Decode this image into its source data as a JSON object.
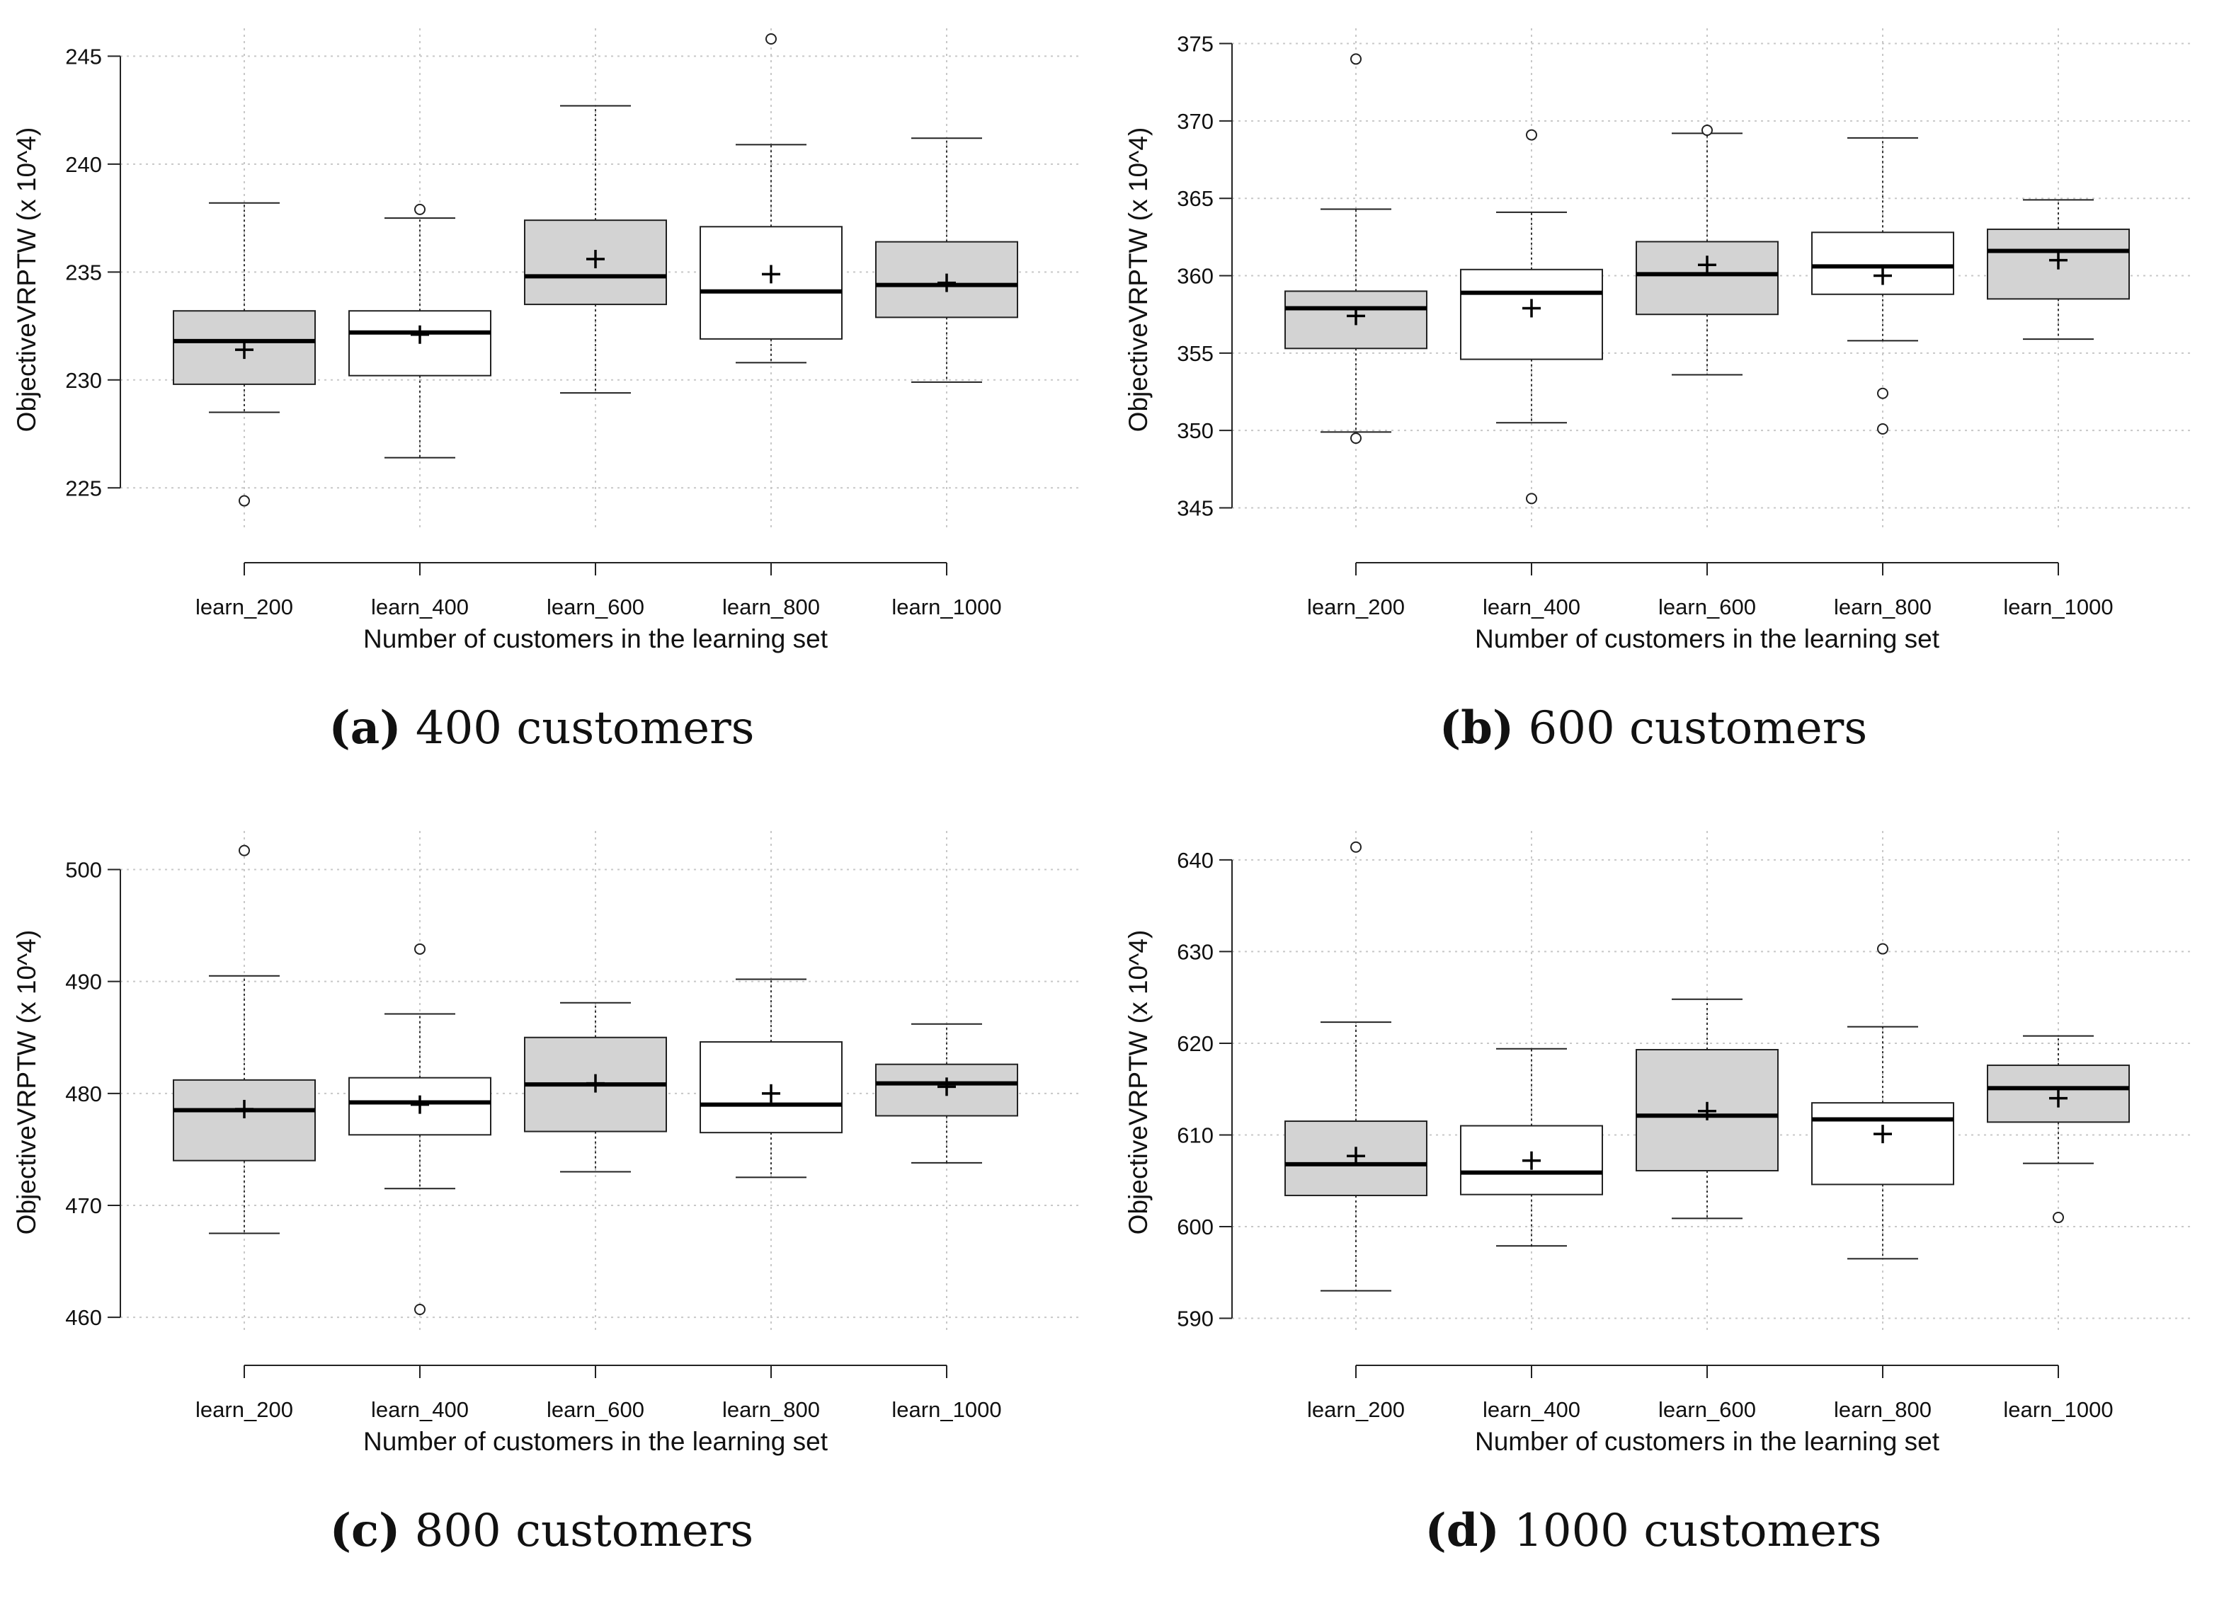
{
  "figure": {
    "chart_data": [
      {
        "type": "boxplot",
        "caption_label": "(a)",
        "caption_text": " 400 customers",
        "xlabel": "Number of customers in the learning set",
        "ylabel": "ObjectiveVRPTW (x 10^4)",
        "ylim": [
          223.5,
          245.8
        ],
        "yticks": [
          225,
          230,
          235,
          240,
          245
        ],
        "categories": [
          "learn_200",
          "learn_400",
          "learn_600",
          "learn_800",
          "learn_1000"
        ],
        "boxes": [
          {
            "whisker_low": 228.5,
            "q1": 229.8,
            "median": 231.8,
            "q3": 233.2,
            "whisker_high": 238.2,
            "mean": 231.4,
            "outliers": [
              224.4
            ],
            "fill": "#d3d3d3"
          },
          {
            "whisker_low": 226.4,
            "q1": 230.2,
            "median": 232.2,
            "q3": 233.2,
            "whisker_high": 237.5,
            "mean": 232.1,
            "outliers": [
              237.9
            ],
            "fill": "#ffffff"
          },
          {
            "whisker_low": 229.4,
            "q1": 233.5,
            "median": 234.8,
            "q3": 237.4,
            "whisker_high": 242.7,
            "mean": 235.6,
            "outliers": [],
            "fill": "#d3d3d3"
          },
          {
            "whisker_low": 230.8,
            "q1": 231.9,
            "median": 234.1,
            "q3": 237.1,
            "whisker_high": 240.9,
            "mean": 234.9,
            "outliers": [
              245.8
            ],
            "fill": "#ffffff"
          },
          {
            "whisker_low": 229.9,
            "q1": 232.9,
            "median": 234.4,
            "q3": 236.4,
            "whisker_high": 241.2,
            "mean": 234.5,
            "outliers": [],
            "fill": "#d3d3d3"
          }
        ]
      },
      {
        "type": "boxplot",
        "caption_label": "(b)",
        "caption_text": " 600 customers",
        "xlabel": "Number of customers in the learning set",
        "ylabel": "ObjectiveVRPTW (x 10^4)",
        "ylim": [
          344.2,
          375.3
        ],
        "yticks": [
          345,
          350,
          355,
          360,
          365,
          370,
          375
        ],
        "categories": [
          "learn_200",
          "learn_400",
          "learn_600",
          "learn_800",
          "learn_1000"
        ],
        "boxes": [
          {
            "whisker_low": 349.9,
            "q1": 355.3,
            "median": 357.9,
            "q3": 359.0,
            "whisker_high": 364.3,
            "mean": 357.4,
            "outliers": [
              374.0,
              349.5
            ],
            "fill": "#d3d3d3"
          },
          {
            "whisker_low": 350.5,
            "q1": 354.6,
            "median": 358.9,
            "q3": 360.4,
            "whisker_high": 364.1,
            "mean": 357.9,
            "outliers": [
              369.1,
              345.6
            ],
            "fill": "#ffffff"
          },
          {
            "whisker_low": 353.6,
            "q1": 357.5,
            "median": 360.1,
            "q3": 362.2,
            "whisker_high": 369.2,
            "mean": 360.7,
            "outliers": [
              369.4
            ],
            "fill": "#d3d3d3"
          },
          {
            "whisker_low": 355.8,
            "q1": 358.8,
            "median": 360.6,
            "q3": 362.8,
            "whisker_high": 368.9,
            "mean": 360.0,
            "outliers": [
              352.4,
              350.1
            ],
            "fill": "#ffffff"
          },
          {
            "whisker_low": 355.9,
            "q1": 358.5,
            "median": 361.6,
            "q3": 363.0,
            "whisker_high": 364.9,
            "mean": 361.0,
            "outliers": [],
            "fill": "#d3d3d3"
          }
        ]
      },
      {
        "type": "boxplot",
        "caption_label": "(c)",
        "caption_text": " 800 customers",
        "xlabel": "Number of customers in the learning set",
        "ylabel": "ObjectiveVRPTW (x 10^4)",
        "ylim": [
          459.5,
          502.5
        ],
        "yticks": [
          460,
          470,
          480,
          490,
          500
        ],
        "categories": [
          "learn_200",
          "learn_400",
          "learn_600",
          "learn_800",
          "learn_1000"
        ],
        "boxes": [
          {
            "whisker_low": 467.5,
            "q1": 474.0,
            "median": 478.5,
            "q3": 481.2,
            "whisker_high": 490.5,
            "mean": 478.6,
            "outliers": [
              501.7
            ],
            "fill": "#d3d3d3"
          },
          {
            "whisker_low": 471.5,
            "q1": 476.3,
            "median": 479.2,
            "q3": 481.4,
            "whisker_high": 487.1,
            "mean": 479.0,
            "outliers": [
              492.9,
              460.7
            ],
            "fill": "#ffffff"
          },
          {
            "whisker_low": 473.0,
            "q1": 476.6,
            "median": 480.8,
            "q3": 485.0,
            "whisker_high": 488.1,
            "mean": 480.9,
            "outliers": [],
            "fill": "#d3d3d3"
          },
          {
            "whisker_low": 472.5,
            "q1": 476.5,
            "median": 479.0,
            "q3": 484.6,
            "whisker_high": 490.2,
            "mean": 480.0,
            "outliers": [],
            "fill": "#ffffff"
          },
          {
            "whisker_low": 473.8,
            "q1": 478.0,
            "median": 480.9,
            "q3": 482.6,
            "whisker_high": 486.2,
            "mean": 480.6,
            "outliers": [],
            "fill": "#d3d3d3"
          }
        ]
      },
      {
        "type": "boxplot",
        "caption_label": "(d)",
        "caption_text": " 1000 customers",
        "xlabel": "Number of customers in the learning set",
        "ylabel": "ObjectiveVRPTW (x 10^4)",
        "ylim": [
          589.5,
          642.0
        ],
        "yticks": [
          590,
          600,
          610,
          620,
          630,
          640
        ],
        "categories": [
          "learn_200",
          "learn_400",
          "learn_600",
          "learn_800",
          "learn_1000"
        ],
        "boxes": [
          {
            "whisker_low": 593.0,
            "q1": 603.4,
            "median": 606.8,
            "q3": 611.5,
            "whisker_high": 622.3,
            "mean": 607.7,
            "outliers": [
              641.4
            ],
            "fill": "#d3d3d3"
          },
          {
            "whisker_low": 597.9,
            "q1": 603.5,
            "median": 605.9,
            "q3": 611.0,
            "whisker_high": 619.4,
            "mean": 607.2,
            "outliers": [],
            "fill": "#ffffff"
          },
          {
            "whisker_low": 600.9,
            "q1": 606.1,
            "median": 612.1,
            "q3": 619.3,
            "whisker_high": 624.8,
            "mean": 612.6,
            "outliers": [],
            "fill": "#d3d3d3"
          },
          {
            "whisker_low": 596.5,
            "q1": 604.6,
            "median": 611.7,
            "q3": 613.5,
            "whisker_high": 621.8,
            "mean": 610.1,
            "outliers": [
              630.3
            ],
            "fill": "#ffffff"
          },
          {
            "whisker_low": 606.9,
            "q1": 611.4,
            "median": 615.1,
            "q3": 617.6,
            "whisker_high": 620.8,
            "mean": 614.0,
            "outliers": [
              601.0
            ],
            "fill": "#d3d3d3"
          }
        ]
      }
    ]
  }
}
